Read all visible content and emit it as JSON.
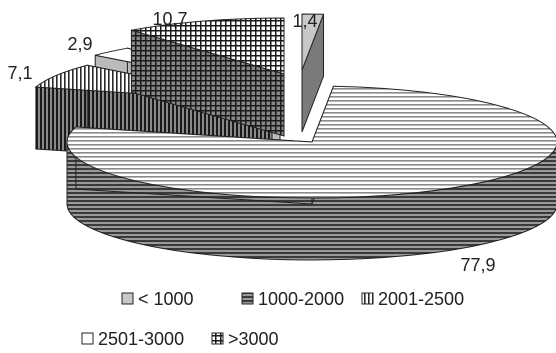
{
  "chart_data": {
    "type": "pie",
    "style": "3d-exploded",
    "categories": [
      "< 1000",
      "1000-2000",
      "2001-2500",
      "2501-3000",
      ">3000"
    ],
    "values": [
      1.4,
      77.9,
      7.1,
      2.9,
      10.7
    ],
    "data_labels": [
      "1,4",
      "77,9",
      "7,1",
      "2,9",
      "10,7"
    ],
    "legend_labels": [
      "< 1000",
      "1000-2000",
      "2001-2500",
      "2501-3000",
      ">3000"
    ],
    "legend_position": "bottom",
    "fill_patterns": [
      "light-gray",
      "horizontal-lines",
      "vertical-lines",
      "white",
      "grid"
    ],
    "title": "",
    "colors": {
      "outline": "#222222",
      "text": "#222222",
      "background": "#ffffff"
    }
  }
}
